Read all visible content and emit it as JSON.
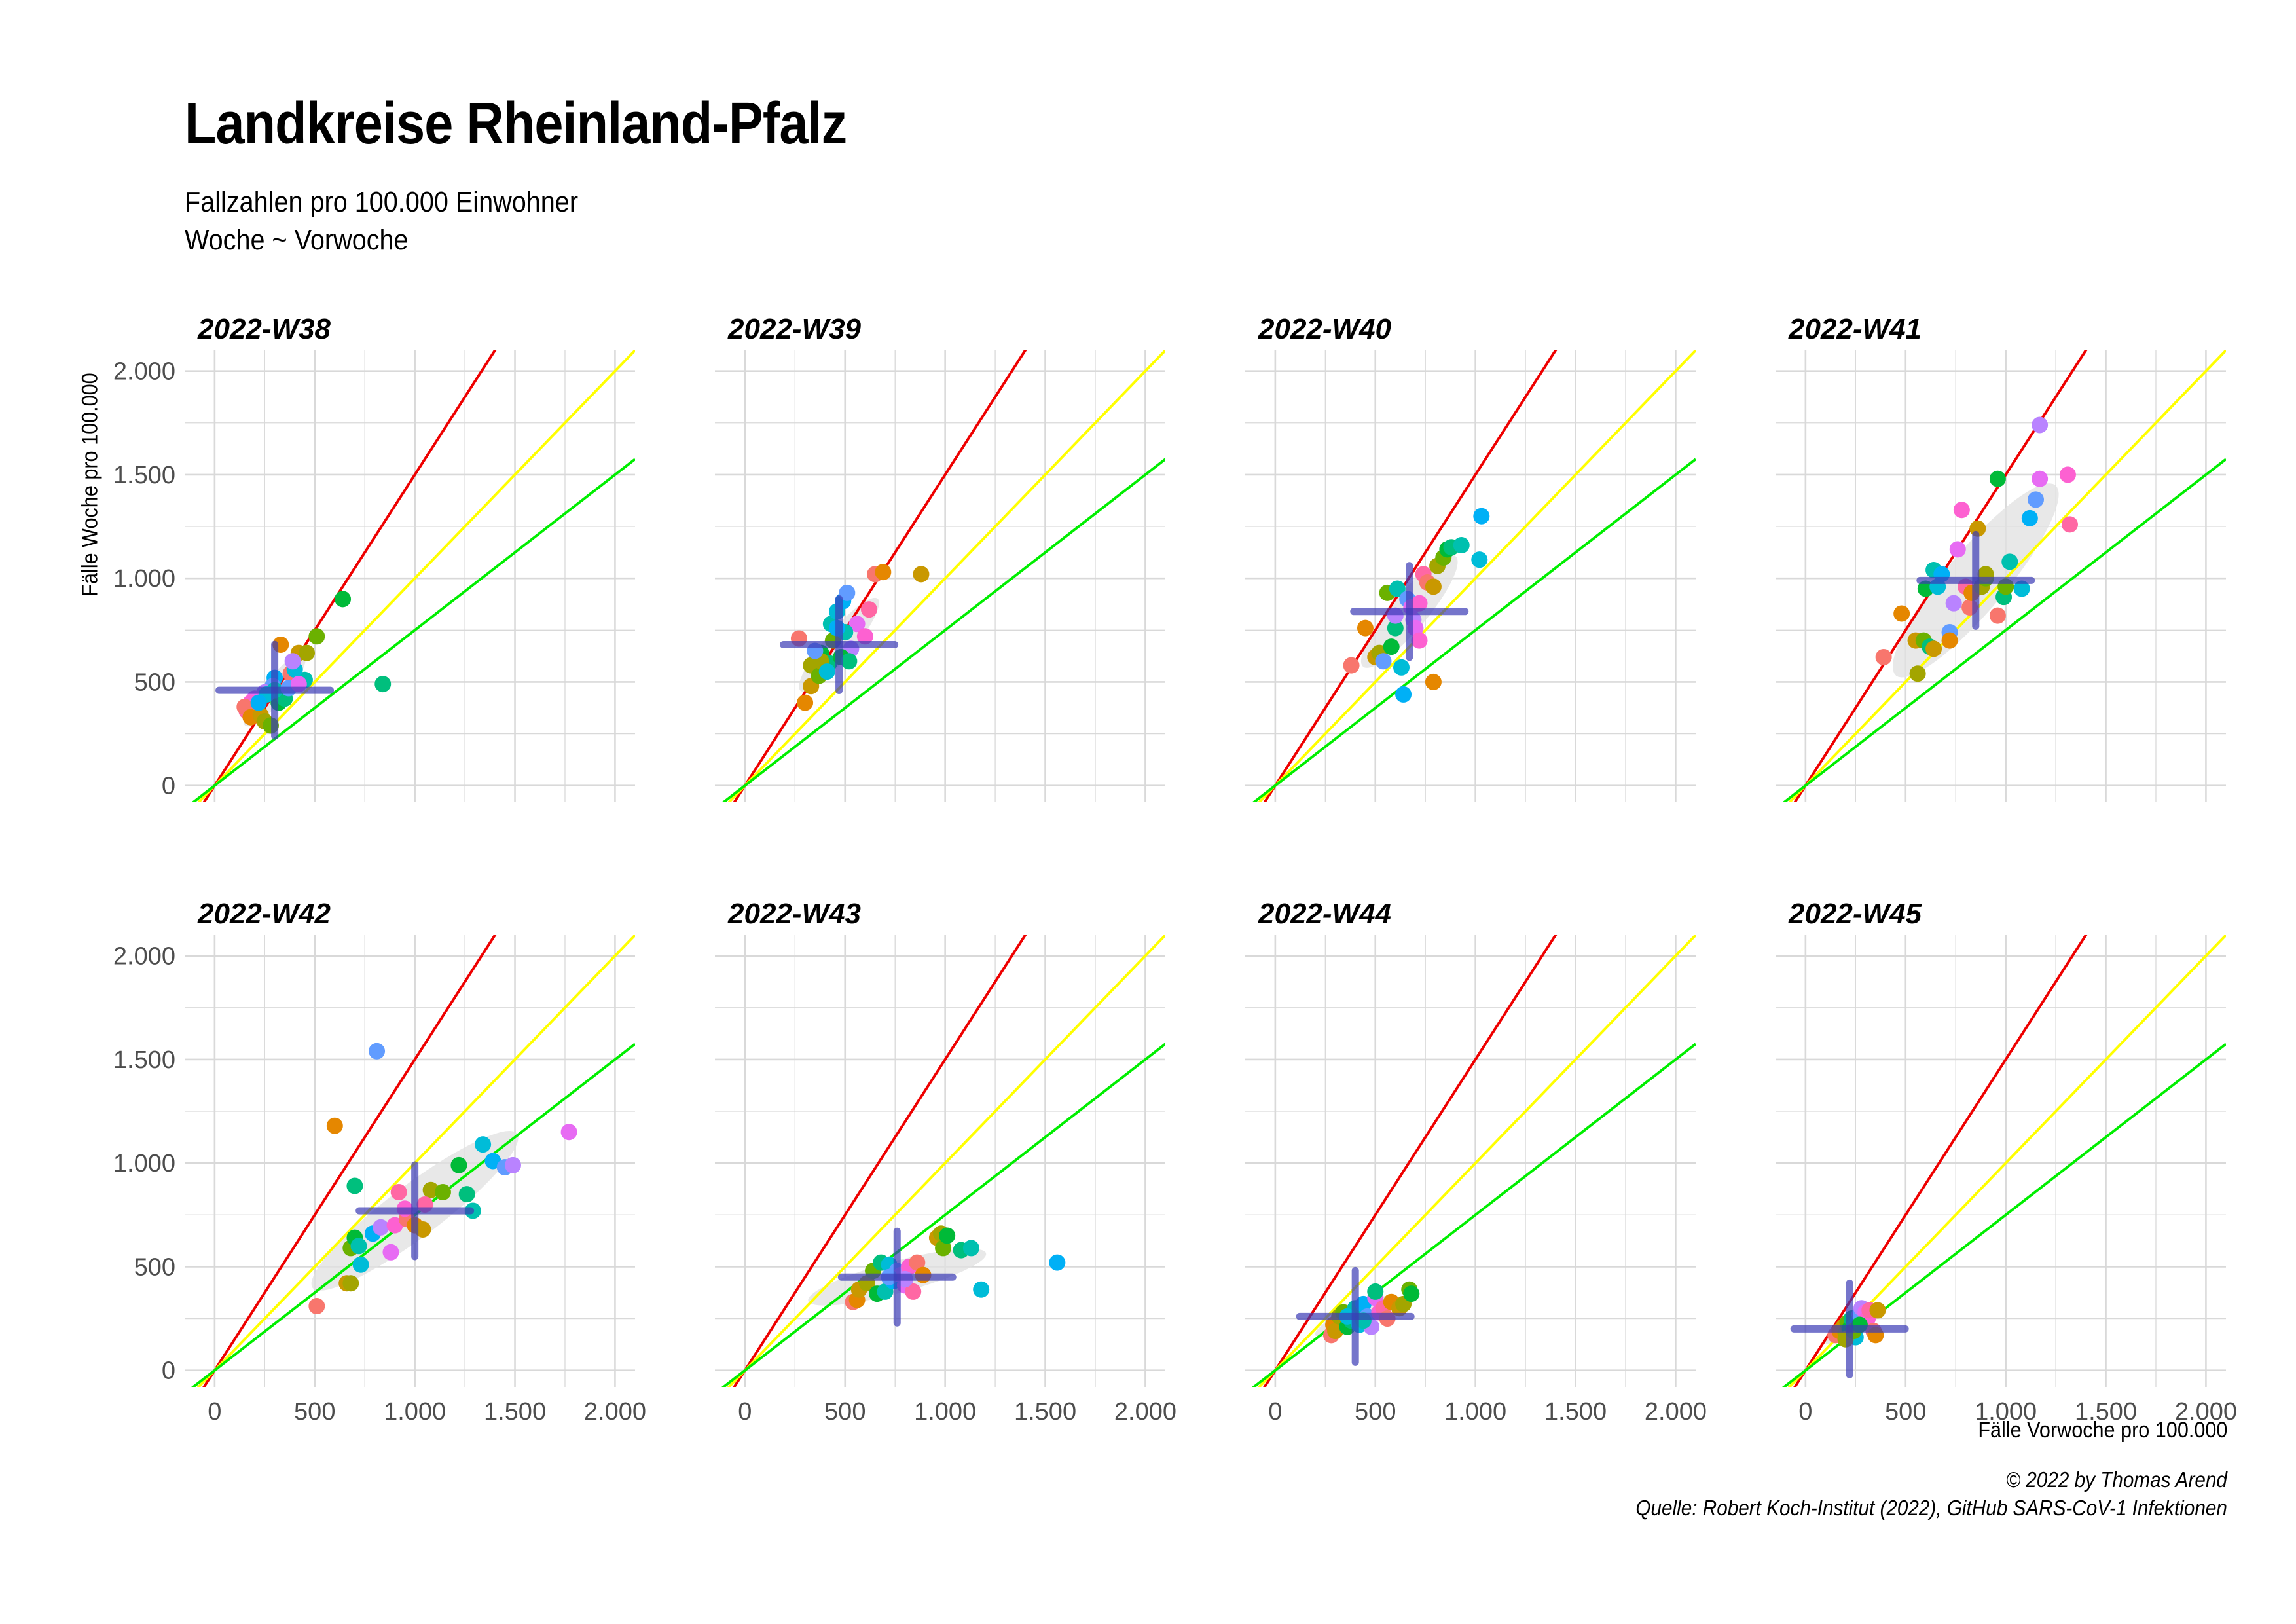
{
  "header": {
    "title": "Landkreise Rheinland-Pfalz",
    "subtitle_line1": "Fallzahlen pro 100.000 Einwohner",
    "subtitle_line2": "Woche ~ Vorwoche"
  },
  "axes": {
    "ylabel": "Fälle Woche pro 100.000",
    "xlabel": "Fälle Vorwoche pro 100.000"
  },
  "caption": {
    "line1": "© 2022 by Thomas Arend",
    "line2": "Quelle: Robert Koch-Institut (2022), GitHub SARS-CoV-1 Infektionen"
  },
  "colors": {
    "red_line": "#ee0000",
    "yellow_line": "#ffff00",
    "green_line": "#00ee00",
    "ellipse": "#e0e0e0",
    "grid": "#d9d9d9",
    "cross": "#3b3bb5",
    "palette": [
      "#F8766D",
      "#E58700",
      "#C99800",
      "#A3A500",
      "#6BB100",
      "#00BA38",
      "#00BF7D",
      "#00C0AF",
      "#00BCD8",
      "#00B0F6",
      "#619CFF",
      "#B983FF",
      "#E76BF3",
      "#FD61D1",
      "#FF67A4"
    ]
  },
  "chart_data": {
    "type": "scatter",
    "facets": "small multiples, 4 columns x 2 rows",
    "xlim": [
      -150,
      2100
    ],
    "ylim": [
      -80,
      2100
    ],
    "x_ticks": [
      0,
      500,
      1000,
      1500,
      2000
    ],
    "x_tick_labels": [
      "0",
      "500",
      "1.000",
      "1.500",
      "2.000"
    ],
    "y_ticks": [
      0,
      500,
      1000,
      1500,
      2000
    ],
    "y_tick_labels": [
      "0",
      "500",
      "1.000",
      "1.500",
      "2.000"
    ],
    "grid": true,
    "reference_lines": [
      {
        "color": "red",
        "slope": 1.5
      },
      {
        "color": "yellow",
        "slope": 1.0
      },
      {
        "color": "green",
        "slope": 0.75
      }
    ],
    "panels": [
      {
        "title": "2022-W38",
        "center": [
          300,
          460
        ],
        "ellipse": {
          "cx": 300,
          "cy": 460,
          "rx": 230,
          "ry": 60,
          "angle": 50
        },
        "points": [
          [
            380,
            540
          ],
          [
            330,
            680
          ],
          [
            420,
            640
          ],
          [
            460,
            640
          ],
          [
            510,
            720
          ],
          [
            640,
            900
          ],
          [
            840,
            490
          ],
          [
            450,
            510
          ],
          [
            400,
            560
          ],
          [
            300,
            520
          ],
          [
            290,
            480
          ],
          [
            250,
            450
          ],
          [
            200,
            420
          ],
          [
            180,
            400
          ],
          [
            160,
            360
          ],
          [
            150,
            380
          ],
          [
            180,
            330
          ],
          [
            230,
            340
          ],
          [
            250,
            310
          ],
          [
            280,
            290
          ],
          [
            320,
            400
          ],
          [
            350,
            420
          ],
          [
            300,
            460
          ],
          [
            260,
            440
          ],
          [
            220,
            400
          ],
          [
            370,
            470
          ],
          [
            390,
            600
          ],
          [
            420,
            490
          ]
        ]
      },
      {
        "title": "2022-W39",
        "center": [
          470,
          680
        ],
        "ellipse": {
          "cx": 470,
          "cy": 680,
          "rx": 300,
          "ry": 70,
          "angle": 50
        },
        "points": [
          [
            270,
            710
          ],
          [
            300,
            400
          ],
          [
            330,
            480
          ],
          [
            330,
            580
          ],
          [
            370,
            530
          ],
          [
            380,
            640
          ],
          [
            420,
            590
          ],
          [
            430,
            780
          ],
          [
            460,
            840
          ],
          [
            490,
            890
          ],
          [
            510,
            930
          ],
          [
            530,
            660
          ],
          [
            560,
            780
          ],
          [
            600,
            720
          ],
          [
            620,
            850
          ],
          [
            650,
            1020
          ],
          [
            690,
            1030
          ],
          [
            880,
            1020
          ],
          [
            380,
            600
          ],
          [
            440,
            700
          ],
          [
            480,
            620
          ],
          [
            520,
            600
          ],
          [
            500,
            740
          ],
          [
            410,
            550
          ],
          [
            460,
            760
          ],
          [
            350,
            650
          ]
        ]
      },
      {
        "title": "2022-W40",
        "center": [
          670,
          840
        ],
        "ellipse": {
          "cx": 670,
          "cy": 840,
          "rx": 360,
          "ry": 90,
          "angle": 50
        },
        "points": [
          [
            380,
            580
          ],
          [
            450,
            760
          ],
          [
            500,
            620
          ],
          [
            520,
            640
          ],
          [
            560,
            930
          ],
          [
            580,
            670
          ],
          [
            600,
            760
          ],
          [
            610,
            950
          ],
          [
            630,
            570
          ],
          [
            640,
            440
          ],
          [
            660,
            900
          ],
          [
            690,
            800
          ],
          [
            700,
            760
          ],
          [
            720,
            700
          ],
          [
            740,
            1020
          ],
          [
            760,
            980
          ],
          [
            790,
            500
          ],
          [
            790,
            960
          ],
          [
            810,
            1060
          ],
          [
            840,
            1100
          ],
          [
            860,
            1140
          ],
          [
            880,
            1150
          ],
          [
            930,
            1160
          ],
          [
            1020,
            1090
          ],
          [
            1030,
            1300
          ],
          [
            540,
            600
          ],
          [
            600,
            820
          ],
          [
            680,
            860
          ],
          [
            720,
            880
          ]
        ]
      },
      {
        "title": "2022-W41",
        "center": [
          850,
          990
        ],
        "ellipse": {
          "cx": 850,
          "cy": 990,
          "rx": 620,
          "ry": 150,
          "angle": 50
        },
        "points": [
          [
            390,
            620
          ],
          [
            480,
            830
          ],
          [
            550,
            700
          ],
          [
            560,
            540
          ],
          [
            590,
            700
          ],
          [
            600,
            950
          ],
          [
            620,
            670
          ],
          [
            640,
            1040
          ],
          [
            660,
            960
          ],
          [
            680,
            1020
          ],
          [
            720,
            740
          ],
          [
            740,
            880
          ],
          [
            760,
            1140
          ],
          [
            780,
            1330
          ],
          [
            800,
            960
          ],
          [
            820,
            860
          ],
          [
            830,
            930
          ],
          [
            860,
            1240
          ],
          [
            880,
            960
          ],
          [
            900,
            1000
          ],
          [
            960,
            1480
          ],
          [
            990,
            910
          ],
          [
            1020,
            1080
          ],
          [
            1080,
            950
          ],
          [
            1120,
            1290
          ],
          [
            1150,
            1380
          ],
          [
            1170,
            1740
          ],
          [
            1170,
            1480
          ],
          [
            1310,
            1500
          ],
          [
            1320,
            1260
          ],
          [
            960,
            820
          ],
          [
            720,
            700
          ],
          [
            640,
            660
          ],
          [
            900,
            1020
          ],
          [
            1000,
            960
          ]
        ]
      },
      {
        "title": "2022-W42",
        "center": [
          1000,
          770
        ],
        "ellipse": {
          "cx": 1000,
          "cy": 770,
          "rx": 640,
          "ry": 130,
          "angle": 37
        },
        "points": [
          [
            510,
            310
          ],
          [
            600,
            1180
          ],
          [
            660,
            420
          ],
          [
            680,
            420
          ],
          [
            680,
            590
          ],
          [
            700,
            640
          ],
          [
            700,
            890
          ],
          [
            720,
            600
          ],
          [
            730,
            510
          ],
          [
            790,
            660
          ],
          [
            810,
            1540
          ],
          [
            830,
            690
          ],
          [
            880,
            570
          ],
          [
            900,
            700
          ],
          [
            920,
            860
          ],
          [
            960,
            730
          ],
          [
            1000,
            700
          ],
          [
            1040,
            680
          ],
          [
            1080,
            870
          ],
          [
            1140,
            860
          ],
          [
            1220,
            990
          ],
          [
            1260,
            850
          ],
          [
            1290,
            770
          ],
          [
            1340,
            1090
          ],
          [
            1390,
            1010
          ],
          [
            1450,
            980
          ],
          [
            1490,
            990
          ],
          [
            1770,
            1150
          ],
          [
            950,
            780
          ],
          [
            1050,
            800
          ]
        ]
      },
      {
        "title": "2022-W43",
        "center": [
          760,
          450
        ],
        "ellipse": {
          "cx": 760,
          "cy": 450,
          "rx": 460,
          "ry": 80,
          "angle": 15
        },
        "points": [
          [
            540,
            330
          ],
          [
            560,
            340
          ],
          [
            570,
            390
          ],
          [
            610,
            420
          ],
          [
            640,
            480
          ],
          [
            660,
            370
          ],
          [
            680,
            520
          ],
          [
            700,
            380
          ],
          [
            720,
            510
          ],
          [
            740,
            430
          ],
          [
            760,
            480
          ],
          [
            780,
            460
          ],
          [
            800,
            410
          ],
          [
            820,
            500
          ],
          [
            840,
            380
          ],
          [
            860,
            520
          ],
          [
            890,
            460
          ],
          [
            960,
            640
          ],
          [
            980,
            660
          ],
          [
            990,
            590
          ],
          [
            1010,
            650
          ],
          [
            1080,
            580
          ],
          [
            1130,
            590
          ],
          [
            1180,
            390
          ],
          [
            1560,
            520
          ],
          [
            720,
            450
          ],
          [
            800,
            440
          ]
        ]
      },
      {
        "title": "2022-W44",
        "center": [
          400,
          260
        ],
        "ellipse": {
          "cx": 400,
          "cy": 260,
          "rx": 220,
          "ry": 50,
          "angle": 25
        },
        "points": [
          [
            280,
            170
          ],
          [
            290,
            220
          ],
          [
            300,
            190
          ],
          [
            320,
            260
          ],
          [
            340,
            280
          ],
          [
            360,
            210
          ],
          [
            380,
            240
          ],
          [
            400,
            300
          ],
          [
            420,
            220
          ],
          [
            440,
            320
          ],
          [
            460,
            260
          ],
          [
            480,
            210
          ],
          [
            500,
            350
          ],
          [
            520,
            280
          ],
          [
            540,
            300
          ],
          [
            560,
            250
          ],
          [
            580,
            330
          ],
          [
            620,
            300
          ],
          [
            640,
            320
          ],
          [
            670,
            390
          ],
          [
            680,
            370
          ],
          [
            500,
            380
          ],
          [
            440,
            240
          ],
          [
            360,
            260
          ]
        ]
      },
      {
        "title": "2022-W45",
        "center": [
          220,
          200
        ],
        "ellipse": {
          "cx": 220,
          "cy": 200,
          "rx": 140,
          "ry": 35,
          "angle": 30
        },
        "points": [
          [
            150,
            170
          ],
          [
            170,
            190
          ],
          [
            190,
            210
          ],
          [
            200,
            180
          ],
          [
            210,
            230
          ],
          [
            220,
            200
          ],
          [
            230,
            250
          ],
          [
            240,
            210
          ],
          [
            250,
            160
          ],
          [
            260,
            230
          ],
          [
            270,
            270
          ],
          [
            280,
            300
          ],
          [
            300,
            280
          ],
          [
            310,
            250
          ],
          [
            320,
            290
          ],
          [
            340,
            190
          ],
          [
            350,
            170
          ],
          [
            360,
            290
          ],
          [
            200,
            150
          ],
          [
            240,
            190
          ],
          [
            270,
            220
          ]
        ]
      }
    ]
  }
}
